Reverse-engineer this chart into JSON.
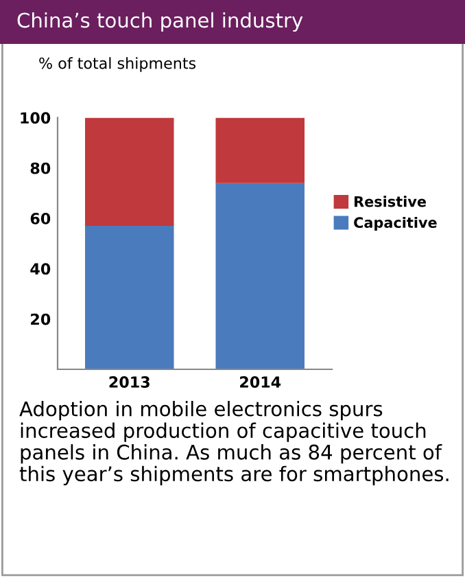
{
  "chart_data": {
    "type": "bar",
    "title": "China’s touch panel industry",
    "ylabel": "% of total shipments",
    "categories": [
      "2013",
      "2014"
    ],
    "stacked": true,
    "series": [
      {
        "name": "Capacitive",
        "color": "#4a7bbd",
        "values": [
          57,
          74
        ]
      },
      {
        "name": "Resistive",
        "color": "#c0393d",
        "values": [
          43,
          26
        ]
      }
    ],
    "ylim": [
      0,
      100
    ],
    "yticks": [
      20,
      40,
      60,
      80,
      100
    ],
    "grid": false,
    "legend": "right",
    "annotations": [
      "Adoption in mobile electronics spurs increased production of capacitive touch panels in China. As much as 84 percent of this year’s shipments are for smartphones."
    ]
  }
}
